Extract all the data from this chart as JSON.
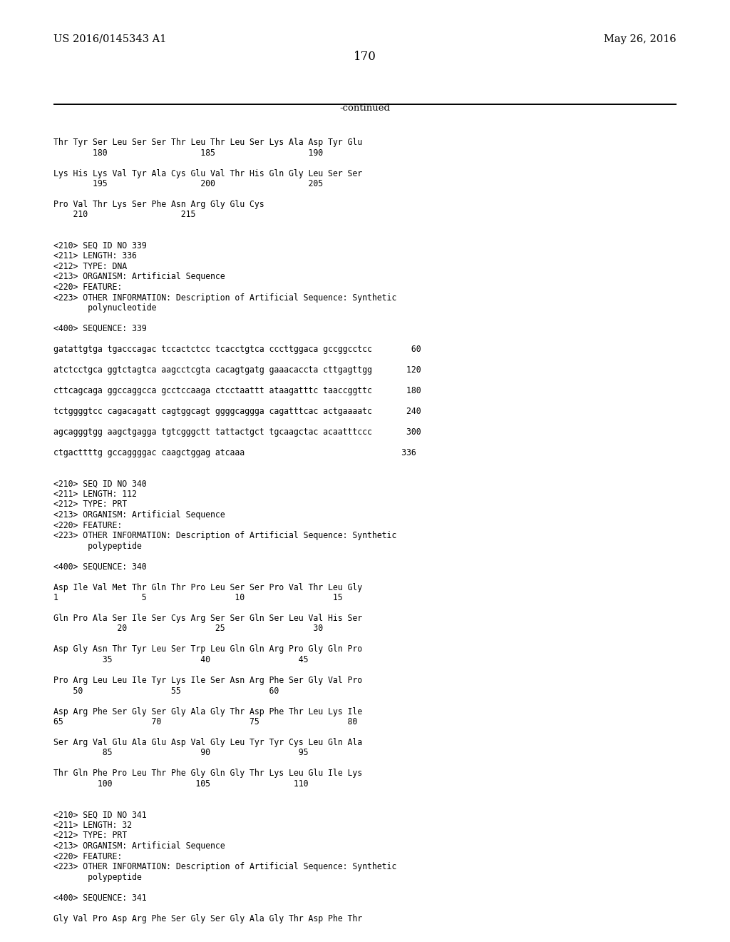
{
  "bg_color": "#ffffff",
  "header_left": "US 2016/0145343 A1",
  "header_right": "May 26, 2016",
  "page_number": "170",
  "continued_label": "-continued",
  "content_lines": [
    "Thr Tyr Ser Leu Ser Ser Thr Leu Thr Leu Ser Lys Ala Asp Tyr Glu",
    "        180                   185                   190",
    "",
    "Lys His Lys Val Tyr Ala Cys Glu Val Thr His Gln Gly Leu Ser Ser",
    "        195                   200                   205",
    "",
    "Pro Val Thr Lys Ser Phe Asn Arg Gly Glu Cys",
    "    210                   215",
    "",
    "",
    "<210> SEQ ID NO 339",
    "<211> LENGTH: 336",
    "<212> TYPE: DNA",
    "<213> ORGANISM: Artificial Sequence",
    "<220> FEATURE:",
    "<223> OTHER INFORMATION: Description of Artificial Sequence: Synthetic",
    "       polynucleotide",
    "",
    "<400> SEQUENCE: 339",
    "",
    "gatattgtga tgacccagac tccactctcc tcacctgtca cccttggaca gccggcctcc        60",
    "",
    "atctcctgca ggtctagtca aagcctcgta cacagtgatg gaaacaccta cttgagttgg       120",
    "",
    "cttcagcaga ggccaggcca gcctccaaga ctcctaattt ataagatttc taaccggttc       180",
    "",
    "tctggggtcc cagacagatt cagtggcagt ggggcaggga cagatttcac actgaaaatc       240",
    "",
    "agcagggtgg aagctgagga tgtcgggctt tattactgct tgcaagctac acaatttccc       300",
    "",
    "ctgacttttg gccaggggac caagctggag atcaaa                                336",
    "",
    "",
    "<210> SEQ ID NO 340",
    "<211> LENGTH: 112",
    "<212> TYPE: PRT",
    "<213> ORGANISM: Artificial Sequence",
    "<220> FEATURE:",
    "<223> OTHER INFORMATION: Description of Artificial Sequence: Synthetic",
    "       polypeptide",
    "",
    "<400> SEQUENCE: 340",
    "",
    "Asp Ile Val Met Thr Gln Thr Pro Leu Ser Ser Pro Val Thr Leu Gly",
    "1                 5                  10                  15",
    "",
    "Gln Pro Ala Ser Ile Ser Cys Arg Ser Ser Gln Ser Leu Val His Ser",
    "             20                  25                  30",
    "",
    "Asp Gly Asn Thr Tyr Leu Ser Trp Leu Gln Gln Arg Pro Gly Gln Pro",
    "          35                  40                  45",
    "",
    "Pro Arg Leu Leu Ile Tyr Lys Ile Ser Asn Arg Phe Ser Gly Val Pro",
    "    50                  55                  60",
    "",
    "Asp Arg Phe Ser Gly Ser Gly Ala Gly Thr Asp Phe Thr Leu Lys Ile",
    "65                  70                  75                  80",
    "",
    "Ser Arg Val Glu Ala Glu Asp Val Gly Leu Tyr Tyr Cys Leu Gln Ala",
    "          85                  90                  95",
    "",
    "Thr Gln Phe Pro Leu Thr Phe Gly Gln Gly Thr Lys Leu Glu Ile Lys",
    "         100                 105                 110",
    "",
    "",
    "<210> SEQ ID NO 341",
    "<211> LENGTH: 32",
    "<212> TYPE: PRT",
    "<213> ORGANISM: Artificial Sequence",
    "<220> FEATURE:",
    "<223> OTHER INFORMATION: Description of Artificial Sequence: Synthetic",
    "       polypeptide",
    "",
    "<400> SEQUENCE: 341",
    "",
    "Gly Val Pro Asp Arg Phe Ser Gly Ser Gly Ala Gly Thr Asp Phe Thr"
  ],
  "header_fontsize": 10.5,
  "page_num_fontsize": 12,
  "content_fontsize": 8.3,
  "continued_fontsize": 9.5
}
